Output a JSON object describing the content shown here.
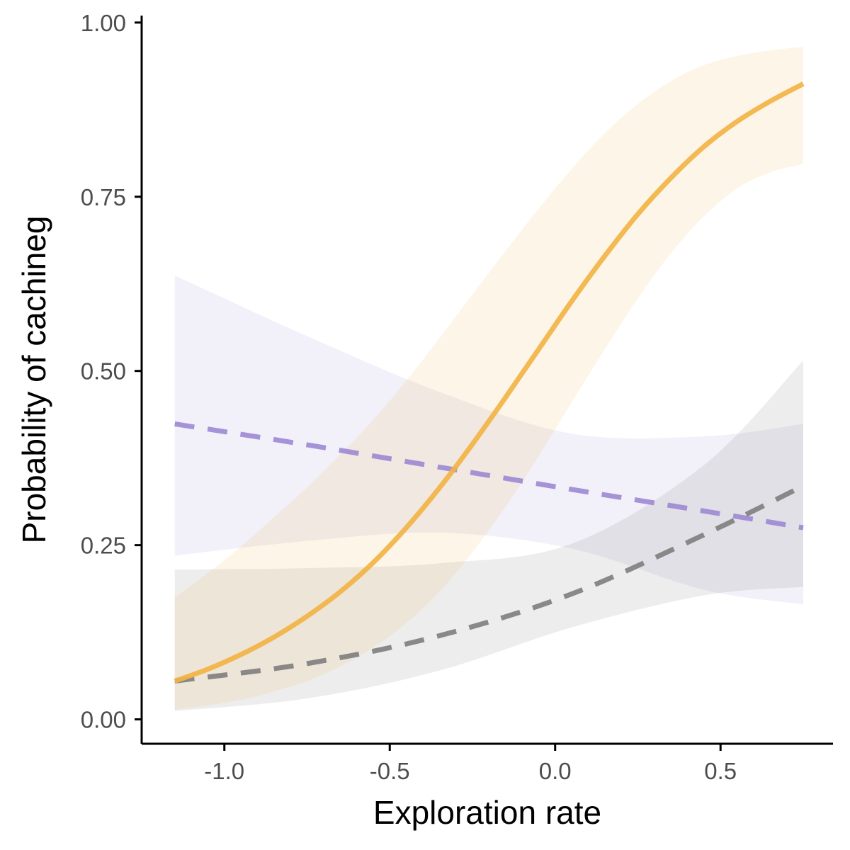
{
  "chart_data": {
    "type": "line",
    "title": "",
    "xlabel": "Exploration rate",
    "ylabel": "Probability of cachineg",
    "xlim": [
      -1.25,
      0.84
    ],
    "ylim": [
      -0.035,
      1.01
    ],
    "x_ticks": [
      -1.0,
      -0.5,
      0.0,
      0.5
    ],
    "x_tick_labels": [
      "-1.0",
      "-0.5",
      "0.0",
      "0.5"
    ],
    "y_ticks": [
      0.0,
      0.25,
      0.5,
      0.75,
      1.0
    ],
    "y_tick_labels": [
      "0.00",
      "0.25",
      "0.50",
      "0.75",
      "1.00"
    ],
    "grid": false,
    "legend": "none",
    "series": [
      {
        "color": "#9e8ad4",
        "line_style": "dashed",
        "x": [
          -1.15,
          -0.75,
          -0.35,
          0.05,
          0.45,
          0.75
        ],
        "y": [
          0.424,
          0.394,
          0.362,
          0.33,
          0.299,
          0.275
        ],
        "ci_upper": [
          0.637,
          0.55,
          0.47,
          0.41,
          0.406,
          0.424
        ],
        "ci_lower": [
          0.235,
          0.256,
          0.268,
          0.245,
          0.186,
          0.165
        ]
      },
      {
        "color": "#808080",
        "line_style": "dashed",
        "x": [
          -1.15,
          -0.75,
          -0.35,
          0.05,
          0.45,
          0.75
        ],
        "y": [
          0.055,
          0.08,
          0.12,
          0.18,
          0.265,
          0.335
        ],
        "ci_upper": [
          0.215,
          0.217,
          0.224,
          0.252,
          0.365,
          0.515
        ],
        "ci_lower": [
          0.012,
          0.03,
          0.07,
          0.132,
          0.178,
          0.19
        ]
      },
      {
        "color": "#f2b345",
        "line_style": "solid",
        "x": [
          -1.15,
          -1.05,
          -0.95,
          -0.85,
          -0.75,
          -0.65,
          -0.55,
          -0.45,
          -0.35,
          -0.25,
          -0.15,
          -0.05,
          0.05,
          0.15,
          0.25,
          0.35,
          0.45,
          0.55,
          0.65,
          0.75
        ],
        "y": [
          0.055,
          0.072,
          0.093,
          0.118,
          0.148,
          0.183,
          0.225,
          0.275,
          0.332,
          0.395,
          0.462,
          0.531,
          0.6,
          0.665,
          0.725,
          0.777,
          0.822,
          0.858,
          0.887,
          0.912
        ],
        "ci_upper": [
          0.175,
          0.21,
          0.248,
          0.29,
          0.333,
          0.38,
          0.43,
          0.486,
          0.547,
          0.61,
          0.672,
          0.733,
          0.79,
          0.841,
          0.883,
          0.916,
          0.939,
          0.952,
          0.96,
          0.965
        ],
        "ci_lower": [
          0.014,
          0.02,
          0.028,
          0.04,
          0.055,
          0.076,
          0.103,
          0.138,
          0.183,
          0.24,
          0.305,
          0.378,
          0.455,
          0.531,
          0.604,
          0.669,
          0.722,
          0.762,
          0.785,
          0.797
        ]
      }
    ]
  }
}
